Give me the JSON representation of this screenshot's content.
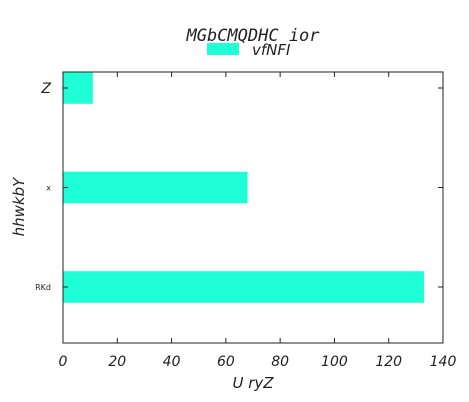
{
  "chart_data": {
    "type": "bar",
    "orientation": "horizontal",
    "title": "MGbCMQDHC  ior",
    "xlabel": "U  ryZ",
    "ylabel": "hhwkbY",
    "categories": [
      "Z",
      "x",
      "RKd"
    ],
    "series": [
      {
        "name": "vfNFI",
        "values": [
          11,
          68,
          133
        ],
        "color": "#1effd8"
      }
    ],
    "xlim": [
      0,
      140
    ],
    "xticks": [
      0,
      20,
      40,
      60,
      80,
      100,
      120,
      140
    ],
    "grid": false,
    "legend_position": "top-center"
  }
}
